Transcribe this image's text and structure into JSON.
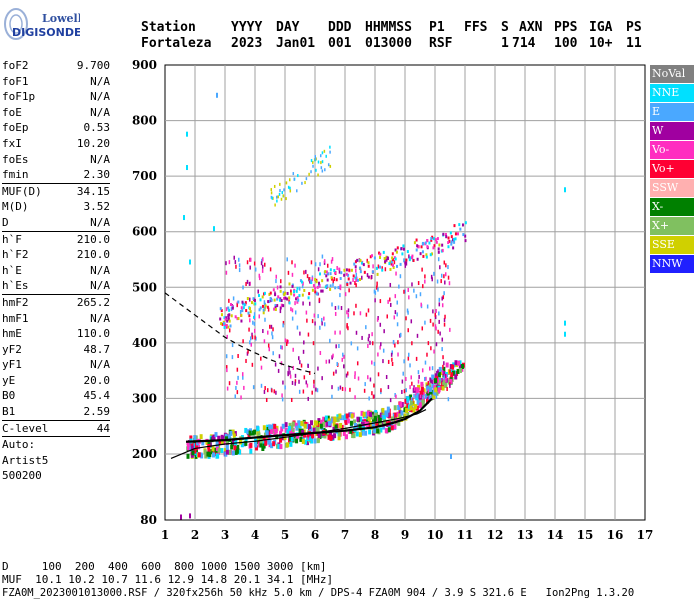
{
  "logo": {
    "line1": "Lowell",
    "line2": "DIGISONDE"
  },
  "header": {
    "labels": [
      "Station",
      "YYYY",
      "DAY",
      "DDD",
      "HHMMSS",
      "P1",
      "FFS",
      "S",
      "AXN",
      "PPS",
      "IGA",
      "PS"
    ],
    "values": [
      "Fortaleza",
      "2023",
      "Jan01",
      "001",
      "013000",
      "RSF",
      "1",
      "714",
      "100",
      "10+",
      "11"
    ]
  },
  "params": [
    {
      "label": "foF2",
      "value": "9.700"
    },
    {
      "label": "foF1",
      "value": "N/A"
    },
    {
      "label": "foF1p",
      "value": "N/A"
    },
    {
      "label": "foE",
      "value": "N/A"
    },
    {
      "label": "foEp",
      "value": "0.53"
    },
    {
      "label": "fxI",
      "value": "10.20"
    },
    {
      "label": "foEs",
      "value": "N/A"
    },
    {
      "label": "fmin",
      "value": "2.30"
    },
    {
      "label": "MUF(D)",
      "value": "34.15",
      "sep": true
    },
    {
      "label": "M(D)",
      "value": "3.52"
    },
    {
      "label": "D",
      "value": "N/A"
    },
    {
      "label": "h`F",
      "value": "210.0",
      "sep": true
    },
    {
      "label": "h`F2",
      "value": "210.0"
    },
    {
      "label": "h`E",
      "value": "N/A"
    },
    {
      "label": "h`Es",
      "value": "N/A"
    },
    {
      "label": "hmF2",
      "value": "265.2",
      "sep": true
    },
    {
      "label": "hmF1",
      "value": "N/A"
    },
    {
      "label": "hmE",
      "value": "110.0"
    },
    {
      "label": "yF2",
      "value": "48.7"
    },
    {
      "label": "yF1",
      "value": "N/A"
    },
    {
      "label": "yE",
      "value": "20.0"
    },
    {
      "label": "B0",
      "value": "45.4"
    },
    {
      "label": "B1",
      "value": "2.59"
    },
    {
      "label": "C-level",
      "value": "44",
      "sep": true
    },
    {
      "label": "Auto:",
      "value": "",
      "sep": true
    },
    {
      "label": "Artist5",
      "value": ""
    },
    {
      "label": "500200",
      "value": ""
    }
  ],
  "legend": [
    {
      "label": "NoVal",
      "color": "#808080"
    },
    {
      "label": "NNE",
      "color": "#00e0ff"
    },
    {
      "label": "E",
      "color": "#4aa8ff"
    },
    {
      "label": "W",
      "color": "#a000a0"
    },
    {
      "label": "Vo-",
      "color": "#ff2ec0"
    },
    {
      "label": "Vo+",
      "color": "#ff0033"
    },
    {
      "label": "SSW",
      "color": "#ffb0b0"
    },
    {
      "label": "X-",
      "color": "#008000"
    },
    {
      "label": "X+",
      "color": "#80c060"
    },
    {
      "label": "SSE",
      "color": "#d0d000"
    },
    {
      "label": "NNW",
      "color": "#2020ff"
    }
  ],
  "footer": {
    "line1": "D     100  200  400  600  800 1000 1500 3000 [km]",
    "line2": "MUF  10.1 10.2 10.7 11.6 12.9 14.8 20.1 34.1 [MHz]",
    "line3": "FZA0M_2023001013000.RSF / 320fx256h 50 kHz 5.0 km / DPS-4 FZA0M 904 / 3.9 S 321.6 E   Ion2Png 1.3.20"
  },
  "chart_data": {
    "type": "scatter",
    "xlim": [
      1,
      17
    ],
    "ylim": [
      80,
      900
    ],
    "xticks": [
      "1",
      "2",
      "3",
      "4",
      "5",
      "6",
      "7",
      "8",
      "9",
      "10",
      "11",
      "12",
      "13",
      "14",
      "15",
      "16",
      "17"
    ],
    "yticks": [
      "80",
      "200",
      "300",
      "400",
      "500",
      "600",
      "700",
      "800",
      "900"
    ],
    "grid": true,
    "trace_clusters": [
      {
        "name": "F2 O-trace",
        "x_range": [
          1.7,
          11.0
        ],
        "y_range": [
          200,
          360
        ]
      },
      {
        "name": "2nd hop",
        "x_range": [
          2.5,
          11.0
        ],
        "y_range": [
          430,
          610
        ]
      },
      {
        "name": "3rd hop",
        "x_range": [
          4.5,
          6.5
        ],
        "y_range": [
          660,
          760
        ]
      },
      {
        "name": "spread",
        "x_range": [
          3.0,
          10.5
        ],
        "y_range": [
          300,
          560
        ]
      }
    ],
    "profile_solid": {
      "x": [
        1.2,
        2.0,
        3.0,
        4.0,
        5.0,
        6.0,
        7.0,
        8.0,
        8.8,
        9.4,
        9.7
      ],
      "y": [
        192,
        210,
        218,
        223,
        230,
        238,
        246,
        256,
        264,
        272,
        280
      ]
    },
    "profile_dashed": {
      "x": [
        1.0,
        1.5,
        2.0,
        2.5,
        3.0,
        3.5,
        4.0,
        4.5,
        5.0,
        5.5,
        6.0
      ],
      "y": [
        490,
        470,
        450,
        430,
        410,
        395,
        382,
        370,
        360,
        352,
        345
      ]
    },
    "profile_black_trace": {
      "x": [
        1.7,
        3.0,
        4.5,
        6.0,
        7.0,
        8.0,
        8.6,
        9.0,
        9.5,
        9.9
      ],
      "y": [
        222,
        225,
        232,
        238,
        242,
        248,
        256,
        263,
        278,
        300
      ]
    }
  }
}
